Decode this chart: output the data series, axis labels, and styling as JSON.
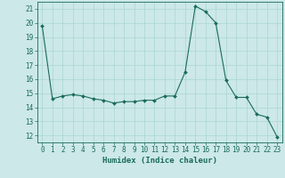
{
  "x": [
    0,
    1,
    2,
    3,
    4,
    5,
    6,
    7,
    8,
    9,
    10,
    11,
    12,
    13,
    14,
    15,
    16,
    17,
    18,
    19,
    20,
    21,
    22,
    23
  ],
  "y": [
    19.8,
    14.6,
    14.8,
    14.9,
    14.8,
    14.6,
    14.5,
    14.3,
    14.4,
    14.4,
    14.5,
    14.5,
    14.8,
    14.8,
    16.5,
    21.2,
    20.8,
    20.0,
    15.9,
    14.7,
    14.7,
    13.5,
    13.3,
    11.9
  ],
  "xlabel": "Humidex (Indice chaleur)",
  "ylim": [
    11.5,
    21.5
  ],
  "xlim": [
    -0.5,
    23.5
  ],
  "yticks": [
    12,
    13,
    14,
    15,
    16,
    17,
    18,
    19,
    20,
    21
  ],
  "xticks": [
    0,
    1,
    2,
    3,
    4,
    5,
    6,
    7,
    8,
    9,
    10,
    11,
    12,
    13,
    14,
    15,
    16,
    17,
    18,
    19,
    20,
    21,
    22,
    23
  ],
  "line_color": "#1a6b5a",
  "marker": "D",
  "marker_size": 2.0,
  "bg_color": "#cce8e8",
  "grid_color": "#aad4d4",
  "axis_color": "#1a6b5a",
  "tick_label_color": "#1a6b5a",
  "xlabel_color": "#1a6b5a",
  "font_size": 5.5,
  "xlabel_font_size": 6.5
}
